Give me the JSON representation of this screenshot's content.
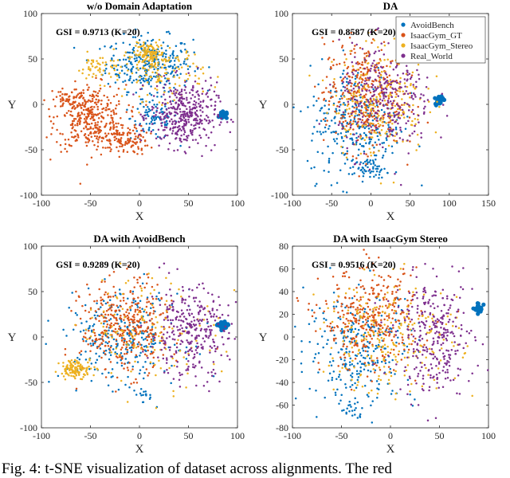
{
  "caption": "Fig. 4: t-SNE visualization of dataset across alignments. The red",
  "legend_entries": [
    "AvoidBench",
    "IsaacGym_GT",
    "IsaacGym_Stereo",
    "Real_World"
  ],
  "series_colors": [
    "#0072BD",
    "#D95319",
    "#EDB120",
    "#7E2F8E"
  ],
  "chart_data": [
    {
      "type": "scatter",
      "title": "w/o Domain Adaptation",
      "gsi_label": "GSI = 0.9713 (K=20)",
      "xlabel": "X",
      "ylabel": "Y",
      "xlim": [
        -100,
        100
      ],
      "ylim": [
        -100,
        100
      ],
      "xticks": [
        -100,
        -50,
        0,
        50,
        100
      ],
      "yticks": [
        -100,
        -50,
        0,
        50,
        100
      ],
      "legend": false,
      "series": [
        {
          "name": "AvoidBench",
          "color": "#0072BD",
          "clusters": [
            {
              "cx": 10,
              "cy": 45,
              "sx": 22,
              "sy": 15,
              "n": 300
            },
            {
              "cx": 15,
              "cy": -15,
              "sx": 12,
              "sy": 12,
              "n": 90
            },
            {
              "cx": 86,
              "cy": -12,
              "sx": 2,
              "sy": 2,
              "n": 30
            }
          ]
        },
        {
          "name": "IsaacGym_GT",
          "color": "#D95319",
          "clusters": [
            {
              "cx": -50,
              "cy": -15,
              "sx": 18,
              "sy": 18,
              "n": 350
            },
            {
              "cx": -15,
              "cy": -40,
              "sx": 12,
              "sy": 8,
              "n": 120
            },
            {
              "cx": -70,
              "cy": 5,
              "sx": 10,
              "sy": 8,
              "n": 60
            }
          ]
        },
        {
          "name": "IsaacGym_Stereo",
          "color": "#EDB120",
          "clusters": [
            {
              "cx": 10,
              "cy": 55,
              "sx": 8,
              "sy": 6,
              "n": 120
            },
            {
              "cx": 25,
              "cy": 35,
              "sx": 20,
              "sy": 15,
              "n": 120
            },
            {
              "cx": -40,
              "cy": 40,
              "sx": 12,
              "sy": 8,
              "n": 60
            }
          ]
        },
        {
          "name": "Real_World",
          "color": "#7E2F8E",
          "clusters": [
            {
              "cx": 45,
              "cy": -12,
              "sx": 17,
              "sy": 18,
              "n": 380
            }
          ]
        }
      ]
    },
    {
      "type": "scatter",
      "title": "DA",
      "gsi_label": "GSI = 0.8587 (K=20)",
      "xlabel": "X",
      "ylabel": "Y",
      "xlim": [
        -100,
        150
      ],
      "ylim": [
        -100,
        100
      ],
      "xticks": [
        -100,
        -50,
        0,
        50,
        100,
        150
      ],
      "yticks": [
        -100,
        -50,
        0,
        50,
        100
      ],
      "legend": true,
      "series": [
        {
          "name": "AvoidBench",
          "color": "#0072BD",
          "clusters": [
            {
              "cx": -20,
              "cy": -20,
              "sx": 30,
              "sy": 32,
              "n": 300
            },
            {
              "cx": 87,
              "cy": 5,
              "sx": 2.5,
              "sy": 2.5,
              "n": 40
            },
            {
              "cx": 0,
              "cy": -70,
              "sx": 10,
              "sy": 5,
              "n": 50
            }
          ]
        },
        {
          "name": "IsaacGym_GT",
          "color": "#D95319",
          "clusters": [
            {
              "cx": -10,
              "cy": 10,
              "sx": 25,
              "sy": 30,
              "n": 350
            }
          ]
        },
        {
          "name": "IsaacGym_Stereo",
          "color": "#EDB120",
          "clusters": [
            {
              "cx": 10,
              "cy": 5,
              "sx": 30,
              "sy": 30,
              "n": 250
            }
          ]
        },
        {
          "name": "Real_World",
          "color": "#7E2F8E",
          "clusters": [
            {
              "cx": 20,
              "cy": 5,
              "sx": 30,
              "sy": 30,
              "n": 300
            }
          ]
        }
      ]
    },
    {
      "type": "scatter",
      "title": "DA with AvoidBench",
      "gsi_label": "GSI = 0.9289 (K=20)",
      "xlabel": "X",
      "ylabel": "Y",
      "xlim": [
        -100,
        100
      ],
      "ylim": [
        -100,
        100
      ],
      "xticks": [
        -100,
        -50,
        0,
        50,
        100
      ],
      "yticks": [
        -100,
        -50,
        0,
        50,
        100
      ],
      "legend": false,
      "series": [
        {
          "name": "AvoidBench",
          "color": "#0072BD",
          "clusters": [
            {
              "cx": -20,
              "cy": 0,
              "sx": 30,
              "sy": 25,
              "n": 280
            },
            {
              "cx": 85,
              "cy": 12,
              "sx": 2.5,
              "sy": 2.5,
              "n": 40
            },
            {
              "cx": 5,
              "cy": -65,
              "sx": 5,
              "sy": 4,
              "n": 15
            }
          ]
        },
        {
          "name": "IsaacGym_GT",
          "color": "#D95319",
          "clusters": [
            {
              "cx": -15,
              "cy": 10,
              "sx": 22,
              "sy": 25,
              "n": 380
            }
          ]
        },
        {
          "name": "IsaacGym_Stereo",
          "color": "#EDB120",
          "clusters": [
            {
              "cx": -65,
              "cy": -35,
              "sx": 8,
              "sy": 5,
              "n": 120
            },
            {
              "cx": 10,
              "cy": 10,
              "sx": 35,
              "sy": 30,
              "n": 140
            }
          ]
        },
        {
          "name": "Real_World",
          "color": "#7E2F8E",
          "clusters": [
            {
              "cx": 50,
              "cy": 5,
              "sx": 20,
              "sy": 25,
              "n": 300
            }
          ]
        }
      ]
    },
    {
      "type": "scatter",
      "title": "DA with IsaacGym Stereo",
      "gsi_label": "GSI = 0.9516 (K=20)",
      "xlabel": "X",
      "ylabel": "Y",
      "xlim": [
        -100,
        100
      ],
      "ylim": [
        -80,
        80
      ],
      "xticks": [
        -100,
        -50,
        0,
        50,
        100
      ],
      "yticks": [
        -80,
        -60,
        -40,
        -20,
        0,
        20,
        40,
        60,
        80
      ],
      "legend": false,
      "series": [
        {
          "name": "AvoidBench",
          "color": "#0072BD",
          "clusters": [
            {
              "cx": -30,
              "cy": -10,
              "sx": 28,
              "sy": 25,
              "n": 280
            },
            {
              "cx": 90,
              "cy": 25,
              "sx": 2,
              "sy": 2,
              "n": 30
            },
            {
              "cx": -40,
              "cy": -65,
              "sx": 6,
              "sy": 4,
              "n": 20
            }
          ]
        },
        {
          "name": "IsaacGym_GT",
          "color": "#D95319",
          "clusters": [
            {
              "cx": -20,
              "cy": 15,
              "sx": 25,
              "sy": 22,
              "n": 350
            }
          ]
        },
        {
          "name": "IsaacGym_Stereo",
          "color": "#EDB120",
          "clusters": [
            {
              "cx": 0,
              "cy": 0,
              "sx": 35,
              "sy": 25,
              "n": 250
            }
          ]
        },
        {
          "name": "Real_World",
          "color": "#7E2F8E",
          "clusters": [
            {
              "cx": 45,
              "cy": 0,
              "sx": 20,
              "sy": 25,
              "n": 300
            }
          ]
        }
      ]
    }
  ]
}
